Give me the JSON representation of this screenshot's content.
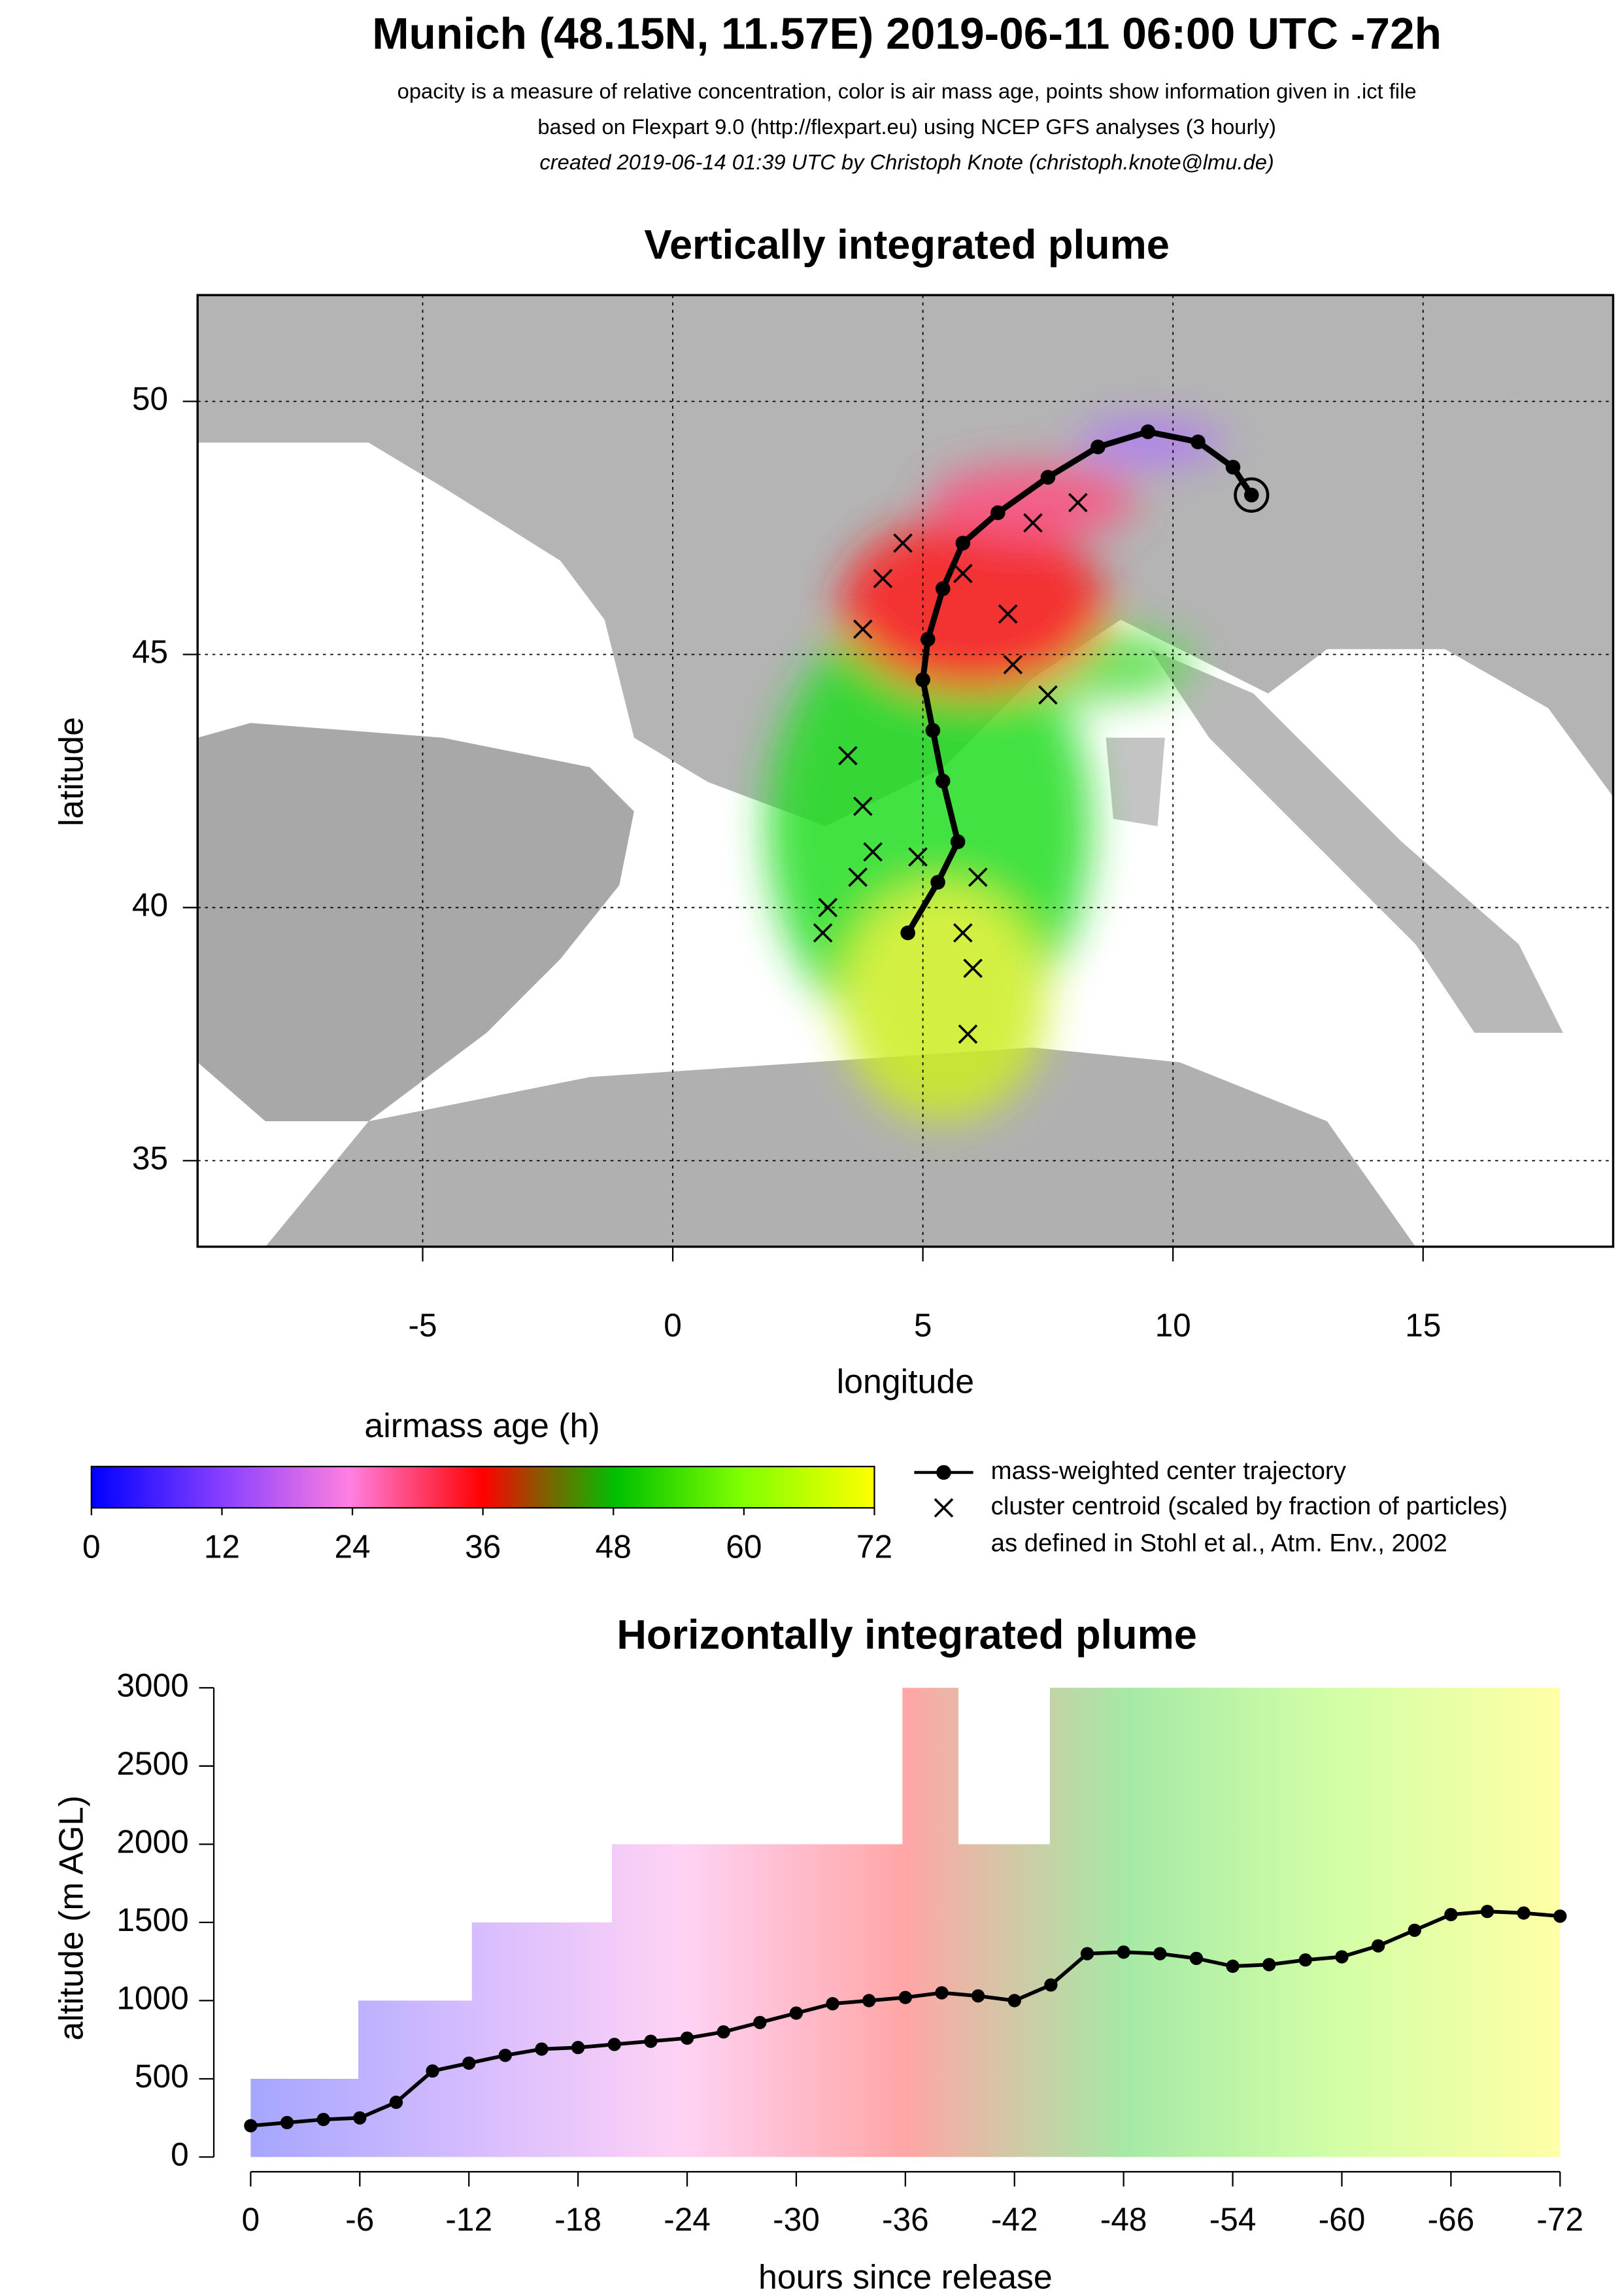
{
  "header": {
    "title": "Munich (48.15N, 11.57E) 2019-06-11 06:00 UTC -72h",
    "lines": [
      "opacity is a measure of relative concentration, color is air mass age, points show information given in .ict file",
      "based on Flexpart 9.0 (http://flexpart.eu) using NCEP GFS analyses (3 hourly)",
      "created 2019-06-14 01:39 UTC by Christoph Knote (christoph.knote@lmu.de)"
    ]
  },
  "chart_data": [
    {
      "type": "map",
      "title": "Vertically integrated plume",
      "x_label": "longitude",
      "y_label": "latitude",
      "xlim": [
        -9.5,
        18.8
      ],
      "ylim": [
        33.3,
        52.1
      ],
      "xticks": [
        -5,
        0,
        5,
        10,
        15
      ],
      "yticks": [
        35,
        40,
        45,
        50
      ],
      "grid": true,
      "series": [
        {
          "name": "mass-weighted center trajectory",
          "color": "#000000",
          "x": [
            11.57,
            11.2,
            10.5,
            9.5,
            8.5,
            7.5,
            6.5,
            5.8,
            5.4,
            5.1,
            5.0,
            5.2,
            5.4,
            5.7,
            5.3,
            4.7
          ],
          "values": [
            48.15,
            48.7,
            49.2,
            49.4,
            49.1,
            48.5,
            47.8,
            47.2,
            46.3,
            45.3,
            44.5,
            43.5,
            42.5,
            41.3,
            40.5,
            39.5
          ]
        },
        {
          "name": "cluster centroid (scaled by fraction of particles)",
          "color": "#000000",
          "x": [
            3.8,
            4.2,
            4.6,
            5.8,
            6.8,
            7.5,
            3.5,
            3.8,
            4.0,
            4.9,
            3.7,
            3.1,
            5.8,
            6.0,
            5.9,
            7.2,
            8.1,
            6.1,
            3.0,
            6.7
          ],
          "values": [
            45.5,
            46.5,
            47.2,
            46.6,
            44.8,
            44.2,
            43.0,
            42.0,
            41.1,
            41.0,
            40.6,
            40.0,
            39.5,
            38.8,
            37.5,
            47.6,
            48.0,
            40.6,
            39.5,
            45.8
          ]
        }
      ],
      "colorbar": {
        "title": "airmass age (h)",
        "lim": [
          0,
          72
        ],
        "ticks": [
          0,
          12,
          24,
          36,
          48,
          60,
          72
        ]
      },
      "legend_note": "as defined in Stohl et al., Atm. Env., 2002"
    },
    {
      "type": "line",
      "title": "Horizontally integrated plume",
      "x_label": "hours since release",
      "y_label": "altitude (m AGL)",
      "xlim": [
        0,
        -72
      ],
      "ylim": [
        0,
        3000
      ],
      "xticks": [
        0,
        -6,
        -12,
        -18,
        -24,
        -30,
        -36,
        -42,
        -48,
        -54,
        -60,
        -66,
        -72
      ],
      "yticks": [
        0,
        500,
        1000,
        1500,
        2000,
        2500,
        3000
      ],
      "series": [
        {
          "name": "mass-weighted center trajectory",
          "color": "#000000",
          "x": [
            0,
            -2,
            -4,
            -6,
            -8,
            -10,
            -12,
            -14,
            -16,
            -18,
            -20,
            -22,
            -24,
            -26,
            -28,
            -30,
            -32,
            -34,
            -36,
            -38,
            -40,
            -42,
            -44,
            -46,
            -48,
            -50,
            -52,
            -54,
            -56,
            -58,
            -60,
            -62,
            -64,
            -66,
            -68,
            -70,
            -72
          ],
          "values": [
            200,
            220,
            240,
            250,
            350,
            550,
            600,
            650,
            690,
            700,
            720,
            740,
            760,
            800,
            860,
            920,
            980,
            1000,
            1020,
            1050,
            1030,
            1000,
            1100,
            1300,
            1310,
            1300,
            1270,
            1220,
            1230,
            1260,
            1280,
            1350,
            1450,
            1550,
            1570,
            1560,
            1540
          ]
        }
      ]
    }
  ]
}
